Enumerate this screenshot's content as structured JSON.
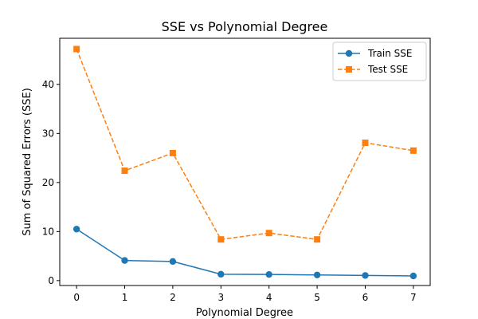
{
  "chart_data": {
    "type": "line",
    "title": "SSE vs Polynomial Degree",
    "xlabel": "Polynomial Degree",
    "ylabel": "Sum of Squared Errors (SSE)",
    "x": [
      0,
      1,
      2,
      3,
      4,
      5,
      6,
      7
    ],
    "xlim": [
      -0.35,
      7.35
    ],
    "ylim": [
      -1.0,
      49.4
    ],
    "xticks": [
      "0",
      "1",
      "2",
      "3",
      "4",
      "5",
      "6",
      "7"
    ],
    "yticks": [
      "0",
      "10",
      "20",
      "30",
      "40"
    ],
    "grid": false,
    "legend_position": "top-right",
    "series": [
      {
        "name": "Train SSE",
        "values": [
          10.5,
          4.1,
          3.9,
          1.3,
          1.25,
          1.15,
          1.05,
          0.95
        ],
        "color": "#1f77b4",
        "line_style": "solid",
        "marker": "circle"
      },
      {
        "name": "Test SSE",
        "values": [
          47.2,
          22.4,
          26.0,
          8.4,
          9.7,
          8.4,
          28.1,
          26.5
        ],
        "color": "#ff7f0e",
        "line_style": "dashed",
        "marker": "square"
      }
    ]
  }
}
